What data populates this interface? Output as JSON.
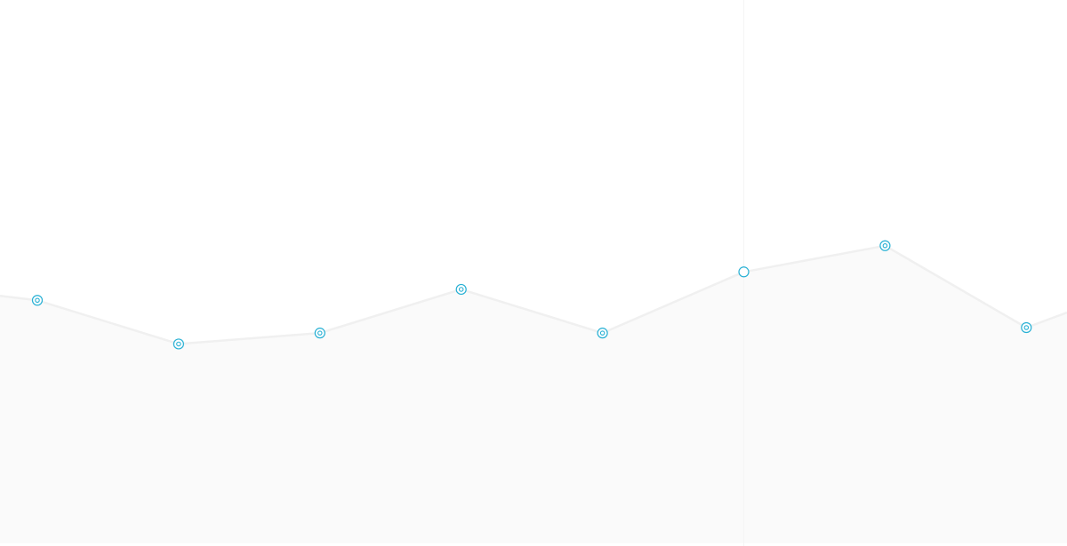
{
  "chart_data": {
    "type": "area",
    "title": "",
    "xlabel": "",
    "ylabel": "",
    "x": [
      0,
      1,
      2,
      3,
      4,
      5,
      6,
      7
    ],
    "series": [
      {
        "values": [
          45,
          37,
          39,
          47,
          39,
          50.2,
          55,
          40
        ]
      }
    ],
    "ylim": [
      0,
      100
    ],
    "grid": false,
    "legend": "none",
    "highlighted_index": 5
  },
  "colors": {
    "line": "#f0f0f0",
    "area_fill": "#fafafa",
    "marker": "#27b0d4",
    "marker_inner": "#27b0d4",
    "crosshair": "#f5f5f5",
    "background": "#ffffff"
  }
}
